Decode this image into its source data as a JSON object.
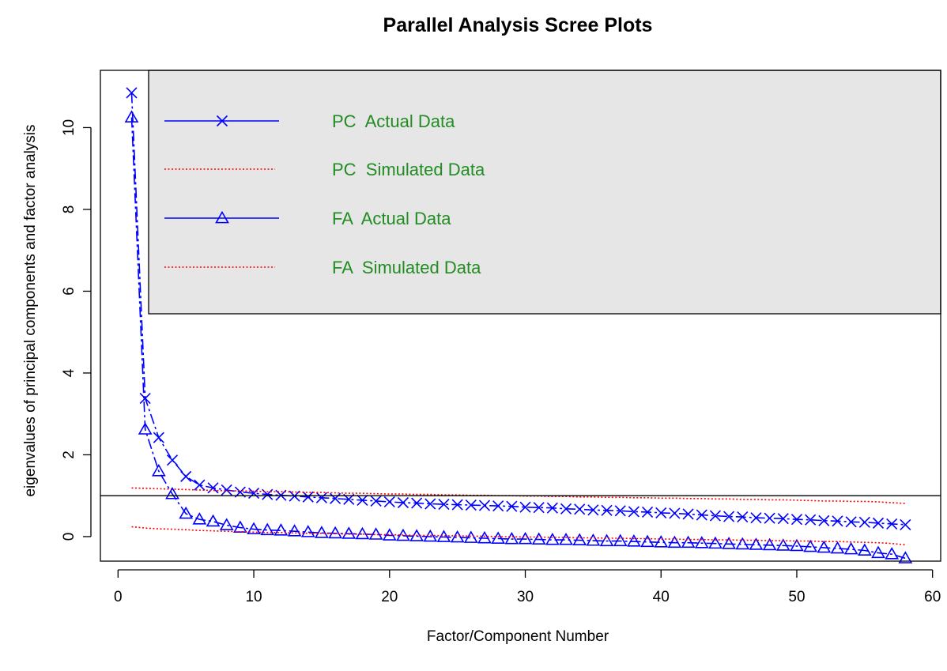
{
  "chart_data": {
    "type": "line",
    "title": "Parallel Analysis Scree Plots",
    "xlabel": "Factor/Component Number",
    "ylabel": "eigenvalues of principal components and factor analysis",
    "xlim": [
      -1.3,
      60.6
    ],
    "ylim": [
      -0.6,
      11.4
    ],
    "x_ticks": [
      0,
      10,
      20,
      30,
      40,
      50,
      60
    ],
    "y_ticks": [
      0,
      2,
      4,
      6,
      8,
      10
    ],
    "reference_line": 1,
    "grid": false,
    "legend_position": "top-right",
    "legend_background": "#e6e6e6",
    "legend_text_color": "#228b22",
    "x": [
      1,
      2,
      3,
      4,
      5,
      6,
      7,
      8,
      9,
      10,
      11,
      12,
      13,
      14,
      15,
      16,
      17,
      18,
      19,
      20,
      21,
      22,
      23,
      24,
      25,
      26,
      27,
      28,
      29,
      30,
      31,
      32,
      33,
      34,
      35,
      36,
      37,
      38,
      39,
      40,
      41,
      42,
      43,
      44,
      45,
      46,
      47,
      48,
      49,
      50,
      51,
      52,
      53,
      54,
      55,
      56,
      57,
      58
    ],
    "series": [
      {
        "name": "PC  Actual Data",
        "color": "#0000ff",
        "line": "solid",
        "marker": "x",
        "values": [
          10.85,
          3.38,
          2.42,
          1.87,
          1.47,
          1.26,
          1.19,
          1.14,
          1.09,
          1.06,
          1.03,
          1.01,
          0.99,
          0.97,
          0.95,
          0.93,
          0.91,
          0.89,
          0.87,
          0.85,
          0.83,
          0.82,
          0.8,
          0.79,
          0.78,
          0.77,
          0.76,
          0.75,
          0.74,
          0.72,
          0.71,
          0.7,
          0.68,
          0.67,
          0.65,
          0.64,
          0.63,
          0.61,
          0.6,
          0.58,
          0.57,
          0.55,
          0.53,
          0.51,
          0.49,
          0.48,
          0.46,
          0.45,
          0.44,
          0.42,
          0.41,
          0.39,
          0.38,
          0.36,
          0.35,
          0.33,
          0.31,
          0.29
        ]
      },
      {
        "name": "PC  Simulated Data",
        "color": "#ff0000",
        "line": "dotted",
        "marker": "none",
        "values": [
          1.19,
          1.18,
          1.17,
          1.16,
          1.15,
          1.14,
          1.13,
          1.12,
          1.12,
          1.11,
          1.1,
          1.1,
          1.09,
          1.08,
          1.08,
          1.07,
          1.06,
          1.06,
          1.05,
          1.04,
          1.04,
          1.03,
          1.03,
          1.02,
          1.02,
          1.01,
          1.01,
          1.0,
          1.0,
          0.99,
          0.99,
          0.98,
          0.98,
          0.97,
          0.97,
          0.96,
          0.96,
          0.95,
          0.95,
          0.94,
          0.94,
          0.93,
          0.93,
          0.92,
          0.92,
          0.91,
          0.91,
          0.9,
          0.9,
          0.89,
          0.88,
          0.87,
          0.87,
          0.86,
          0.86,
          0.85,
          0.83,
          0.81
        ]
      },
      {
        "name": "FA  Actual Data",
        "color": "#0000ff",
        "line": "solid",
        "marker": "triangle",
        "values": [
          10.25,
          2.62,
          1.6,
          1.04,
          0.56,
          0.42,
          0.37,
          0.28,
          0.22,
          0.18,
          0.16,
          0.15,
          0.13,
          0.11,
          0.09,
          0.08,
          0.07,
          0.06,
          0.05,
          0.03,
          0.02,
          0.01,
          0.0,
          -0.01,
          -0.02,
          -0.03,
          -0.04,
          -0.05,
          -0.06,
          -0.06,
          -0.07,
          -0.08,
          -0.08,
          -0.09,
          -0.1,
          -0.11,
          -0.11,
          -0.12,
          -0.13,
          -0.14,
          -0.15,
          -0.15,
          -0.16,
          -0.17,
          -0.18,
          -0.19,
          -0.2,
          -0.21,
          -0.22,
          -0.23,
          -0.25,
          -0.27,
          -0.29,
          -0.31,
          -0.34,
          -0.4,
          -0.43,
          -0.53
        ]
      },
      {
        "name": "FA  Simulated Data",
        "color": "#ff0000",
        "line": "dotted",
        "marker": "none",
        "values": [
          0.24,
          0.21,
          0.19,
          0.18,
          0.17,
          0.15,
          0.14,
          0.13,
          0.12,
          0.11,
          0.1,
          0.1,
          0.09,
          0.08,
          0.08,
          0.07,
          0.06,
          0.06,
          0.05,
          0.05,
          0.04,
          0.03,
          0.03,
          0.02,
          0.02,
          0.01,
          0.01,
          0.0,
          0.0,
          -0.01,
          -0.01,
          -0.02,
          -0.02,
          -0.03,
          -0.03,
          -0.04,
          -0.04,
          -0.05,
          -0.05,
          -0.06,
          -0.06,
          -0.07,
          -0.07,
          -0.08,
          -0.08,
          -0.09,
          -0.09,
          -0.1,
          -0.1,
          -0.11,
          -0.11,
          -0.12,
          -0.12,
          -0.13,
          -0.14,
          -0.15,
          -0.17,
          -0.2
        ]
      }
    ]
  }
}
